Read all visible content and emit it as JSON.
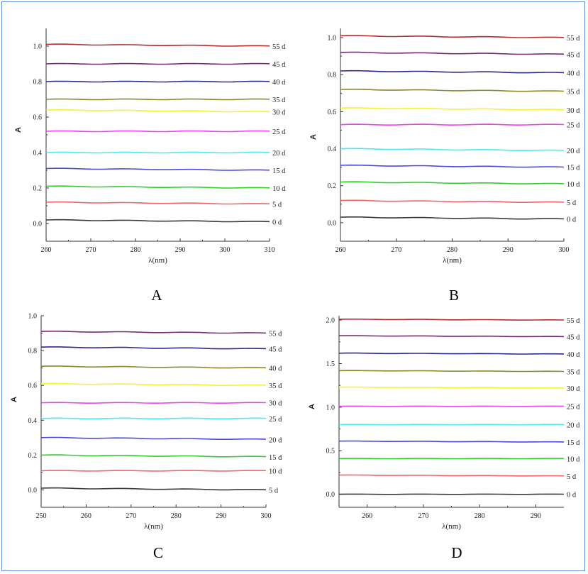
{
  "chart_data": [
    {
      "type": "line",
      "panel_label": "A",
      "xlabel": "λ(nm)",
      "ylabel": "A",
      "xlim": [
        260,
        310
      ],
      "ylim": [
        -0.1,
        1.1
      ],
      "xticks": [
        260,
        270,
        280,
        290,
        300,
        310
      ],
      "yticks": [
        0.0,
        0.2,
        0.4,
        0.6,
        0.8,
        1.0
      ],
      "series": [
        {
          "name": "0 d",
          "color": "#3a3a3a",
          "x": [
            260,
            310
          ],
          "values": [
            0.02,
            0.01
          ]
        },
        {
          "name": "5 d",
          "color": "#f06464",
          "x": [
            260,
            310
          ],
          "values": [
            0.12,
            0.11
          ]
        },
        {
          "name": "10 d",
          "color": "#33cc33",
          "x": [
            260,
            310
          ],
          "values": [
            0.21,
            0.2
          ]
        },
        {
          "name": "15 d",
          "color": "#4a4adf",
          "x": [
            260,
            310
          ],
          "values": [
            0.31,
            0.3
          ]
        },
        {
          "name": "20 d",
          "color": "#44eeee",
          "x": [
            260,
            310
          ],
          "values": [
            0.4,
            0.4
          ]
        },
        {
          "name": "25 d",
          "color": "#ee44ee",
          "x": [
            260,
            310
          ],
          "values": [
            0.52,
            0.52
          ]
        },
        {
          "name": "30 d",
          "color": "#f2f23a",
          "x": [
            260,
            310
          ],
          "values": [
            0.64,
            0.63
          ]
        },
        {
          "name": "35 d",
          "color": "#8a8a2a",
          "x": [
            260,
            310
          ],
          "values": [
            0.7,
            0.7
          ]
        },
        {
          "name": "40 d",
          "color": "#2a2a8a",
          "x": [
            260,
            310
          ],
          "values": [
            0.8,
            0.8
          ]
        },
        {
          "name": "45 d",
          "color": "#7a2a7a",
          "x": [
            260,
            310
          ],
          "values": [
            0.9,
            0.9
          ]
        },
        {
          "name": "55 d",
          "color": "#b03030",
          "x": [
            260,
            310
          ],
          "values": [
            1.01,
            1.0
          ]
        }
      ]
    },
    {
      "type": "line",
      "panel_label": "B",
      "xlabel": "λ(nm)",
      "ylabel": "A",
      "xlim": [
        260,
        300
      ],
      "ylim": [
        -0.1,
        1.05
      ],
      "xticks": [
        260,
        270,
        280,
        290,
        300
      ],
      "yticks": [
        0.0,
        0.2,
        0.4,
        0.6,
        0.8,
        1.0
      ],
      "series": [
        {
          "name": "0 d",
          "color": "#3a3a3a",
          "x": [
            260,
            300
          ],
          "values": [
            0.03,
            0.02
          ]
        },
        {
          "name": "5 d",
          "color": "#f06464",
          "x": [
            260,
            300
          ],
          "values": [
            0.12,
            0.11
          ]
        },
        {
          "name": "10 d",
          "color": "#33cc33",
          "x": [
            260,
            300
          ],
          "values": [
            0.22,
            0.21
          ]
        },
        {
          "name": "15 d",
          "color": "#4a4adf",
          "x": [
            260,
            300
          ],
          "values": [
            0.31,
            0.3
          ]
        },
        {
          "name": "20 d",
          "color": "#44eeee",
          "x": [
            260,
            300
          ],
          "values": [
            0.4,
            0.39
          ]
        },
        {
          "name": "25 d",
          "color": "#ee44ee",
          "x": [
            260,
            300
          ],
          "values": [
            0.53,
            0.53
          ]
        },
        {
          "name": "30 d",
          "color": "#f2f23a",
          "x": [
            260,
            300
          ],
          "values": [
            0.62,
            0.61
          ]
        },
        {
          "name": "35 d",
          "color": "#8a8a2a",
          "x": [
            260,
            300
          ],
          "values": [
            0.72,
            0.71
          ]
        },
        {
          "name": "40 d",
          "color": "#2a2a8a",
          "x": [
            260,
            300
          ],
          "values": [
            0.82,
            0.81
          ]
        },
        {
          "name": "45 d",
          "color": "#7a2a7a",
          "x": [
            260,
            300
          ],
          "values": [
            0.92,
            0.91
          ]
        },
        {
          "name": "55 d",
          "color": "#b03030",
          "x": [
            260,
            300
          ],
          "values": [
            1.01,
            1.0
          ]
        }
      ]
    },
    {
      "type": "line",
      "panel_label": "C",
      "xlabel": "λ(nm)",
      "ylabel": "A",
      "xlim": [
        250,
        300
      ],
      "ylim": [
        -0.1,
        1.0
      ],
      "xticks": [
        250,
        260,
        270,
        280,
        290,
        300
      ],
      "yticks": [
        0.0,
        0.2,
        0.4,
        0.6,
        0.8,
        1.0
      ],
      "series": [
        {
          "name": "5 d",
          "color": "#3a3a3a",
          "x": [
            250,
            300
          ],
          "values": [
            0.01,
            0.0
          ]
        },
        {
          "name": "10 d",
          "color": "#f06464",
          "x": [
            250,
            300
          ],
          "values": [
            0.11,
            0.11
          ]
        },
        {
          "name": "15 d",
          "color": "#33cc33",
          "x": [
            250,
            300
          ],
          "values": [
            0.2,
            0.19
          ]
        },
        {
          "name": "20 d",
          "color": "#4a4adf",
          "x": [
            250,
            300
          ],
          "values": [
            0.3,
            0.29
          ]
        },
        {
          "name": "25 d",
          "color": "#44eeee",
          "x": [
            250,
            300
          ],
          "values": [
            0.41,
            0.41
          ]
        },
        {
          "name": "30 d",
          "color": "#ee44ee",
          "x": [
            250,
            300
          ],
          "values": [
            0.5,
            0.5
          ]
        },
        {
          "name": "35 d",
          "color": "#f2f23a",
          "x": [
            250,
            300
          ],
          "values": [
            0.61,
            0.6
          ]
        },
        {
          "name": "40 d",
          "color": "#8a8a2a",
          "x": [
            250,
            300
          ],
          "values": [
            0.71,
            0.7
          ]
        },
        {
          "name": "45 d",
          "color": "#2a2a8a",
          "x": [
            250,
            300
          ],
          "values": [
            0.82,
            0.81
          ]
        },
        {
          "name": "55 d",
          "color": "#7a2a7a",
          "x": [
            250,
            300
          ],
          "values": [
            0.91,
            0.9
          ]
        }
      ]
    },
    {
      "type": "line",
      "panel_label": "D",
      "xlabel": "λ(nm)",
      "ylabel": "A",
      "xlim": [
        255,
        295
      ],
      "ylim": [
        -0.15,
        2.05
      ],
      "xticks": [
        260,
        270,
        280,
        290
      ],
      "yticks": [
        0.0,
        0.5,
        1.0,
        1.5,
        2.0
      ],
      "series": [
        {
          "name": "0 d",
          "color": "#3a3a3a",
          "x": [
            255,
            295
          ],
          "values": [
            0.0,
            0.0
          ]
        },
        {
          "name": "5 d",
          "color": "#f06464",
          "x": [
            255,
            295
          ],
          "values": [
            0.22,
            0.21
          ]
        },
        {
          "name": "10 d",
          "color": "#33cc33",
          "x": [
            255,
            295
          ],
          "values": [
            0.41,
            0.41
          ]
        },
        {
          "name": "15 d",
          "color": "#4a4adf",
          "x": [
            255,
            295
          ],
          "values": [
            0.61,
            0.6
          ]
        },
        {
          "name": "20 d",
          "color": "#44eeee",
          "x": [
            255,
            295
          ],
          "values": [
            0.8,
            0.8
          ]
        },
        {
          "name": "25 d",
          "color": "#ee44ee",
          "x": [
            255,
            295
          ],
          "values": [
            1.01,
            1.01
          ]
        },
        {
          "name": "30 d",
          "color": "#f2f23a",
          "x": [
            255,
            295
          ],
          "values": [
            1.23,
            1.22
          ]
        },
        {
          "name": "35 d",
          "color": "#8a8a2a",
          "x": [
            255,
            295
          ],
          "values": [
            1.42,
            1.41
          ]
        },
        {
          "name": "40 d",
          "color": "#2a2a8a",
          "x": [
            255,
            295
          ],
          "values": [
            1.62,
            1.61
          ]
        },
        {
          "name": "45 d",
          "color": "#7a2a7a",
          "x": [
            255,
            295
          ],
          "values": [
            1.82,
            1.81
          ]
        },
        {
          "name": "55 d",
          "color": "#b03030",
          "x": [
            255,
            295
          ],
          "values": [
            2.01,
            2.0
          ]
        }
      ]
    }
  ]
}
